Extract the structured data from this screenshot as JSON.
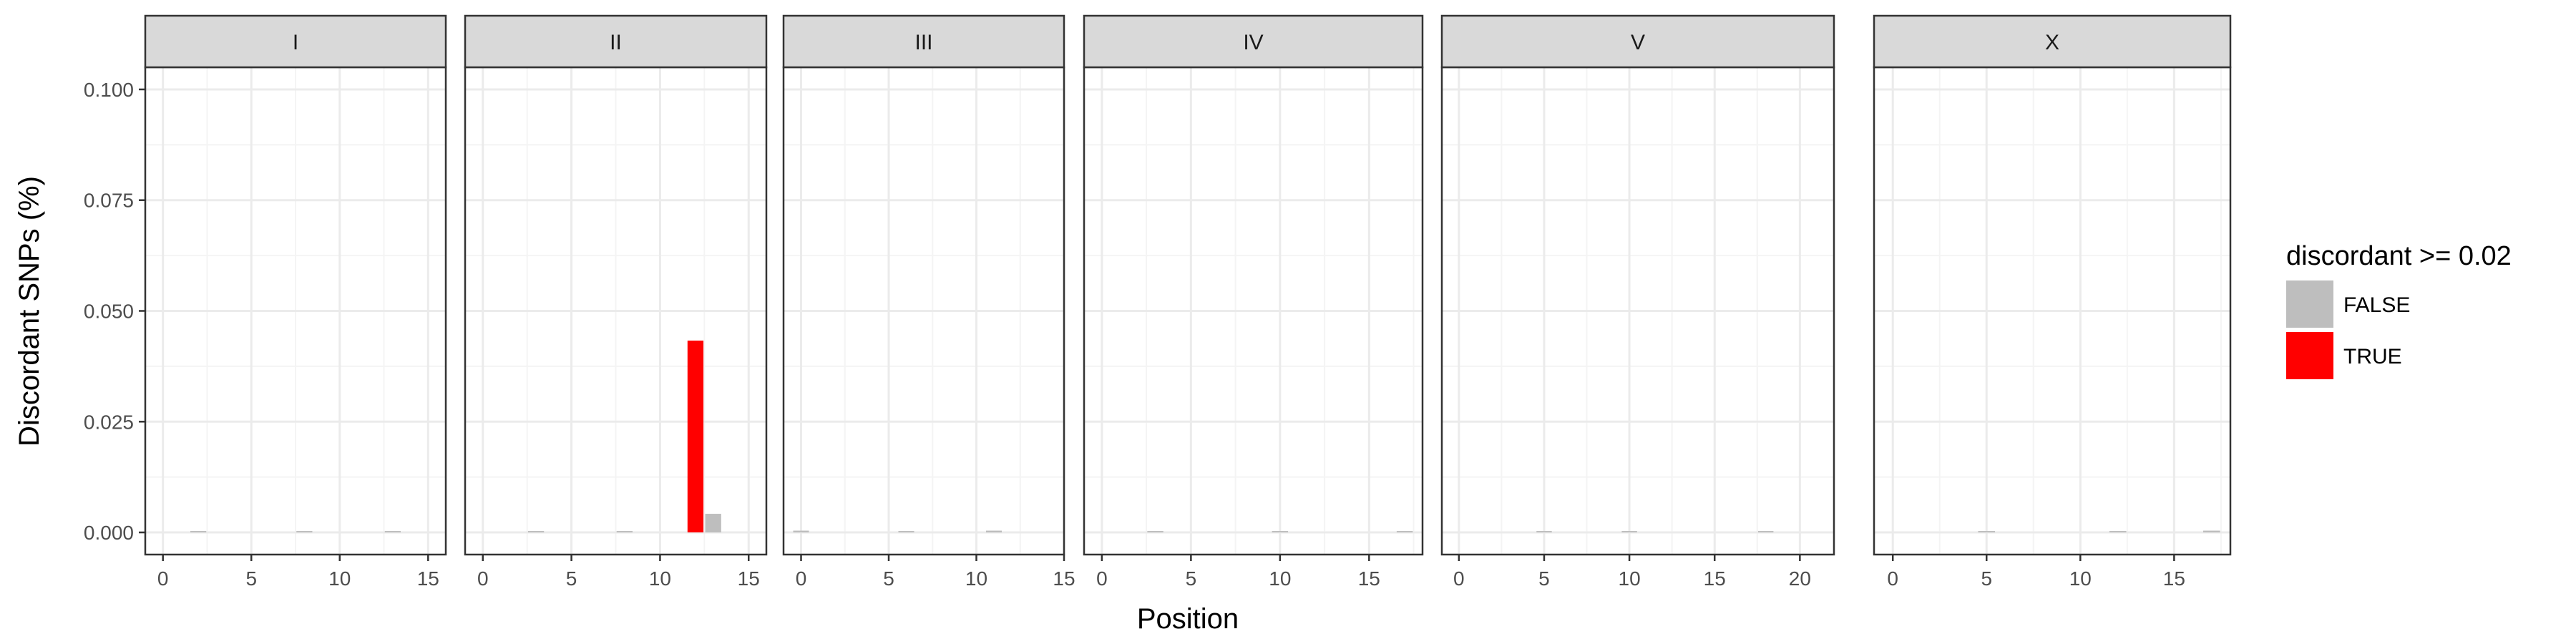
{
  "chart_data": {
    "type": "bar",
    "facet_variable": "chromosome",
    "panels": [
      {
        "label": "I",
        "xlim": [
          -1,
          16
        ],
        "xticks": [
          0,
          5,
          10,
          15
        ],
        "bars": [
          {
            "x": 2,
            "y": 0.0001,
            "group": "FALSE"
          },
          {
            "x": 8,
            "y": 0.0001,
            "group": "FALSE"
          },
          {
            "x": 13,
            "y": 0.0001,
            "group": "FALSE"
          }
        ]
      },
      {
        "label": "II",
        "xlim": [
          -1,
          16
        ],
        "xticks": [
          0,
          5,
          10,
          15
        ],
        "bars": [
          {
            "x": 3,
            "y": 0.0003,
            "group": "FALSE"
          },
          {
            "x": 8,
            "y": 0.0002,
            "group": "FALSE"
          },
          {
            "x": 12,
            "y": 0.0433,
            "group": "TRUE"
          },
          {
            "x": 13,
            "y": 0.0042,
            "group": "FALSE"
          }
        ]
      },
      {
        "label": "III",
        "xlim": [
          -1,
          15
        ],
        "xticks": [
          0,
          5,
          10,
          15
        ],
        "bars": [
          {
            "x": 0,
            "y": 0.0004,
            "group": "FALSE"
          },
          {
            "x": 6,
            "y": 0.0002,
            "group": "FALSE"
          },
          {
            "x": 11,
            "y": 0.0004,
            "group": "FALSE"
          }
        ]
      },
      {
        "label": "IV",
        "xlim": [
          -1,
          18
        ],
        "xticks": [
          0,
          5,
          10,
          15
        ],
        "bars": [
          {
            "x": 3,
            "y": 0.0003,
            "group": "FALSE"
          },
          {
            "x": 10,
            "y": 0.0002,
            "group": "FALSE"
          },
          {
            "x": 17,
            "y": 0.0003,
            "group": "FALSE"
          }
        ]
      },
      {
        "label": "V",
        "xlim": [
          -1,
          22
        ],
        "xticks": [
          0,
          5,
          10,
          15,
          20
        ],
        "bars": [
          {
            "x": 5,
            "y": 0.0002,
            "group": "FALSE"
          },
          {
            "x": 10,
            "y": 0.0003,
            "group": "FALSE"
          },
          {
            "x": 18,
            "y": 0.0002,
            "group": "FALSE"
          }
        ]
      },
      {
        "label": "X",
        "xlim": [
          -1,
          18
        ],
        "xticks": [
          0,
          5,
          10,
          15
        ],
        "bars": [
          {
            "x": 5,
            "y": 0.0002,
            "group": "FALSE"
          },
          {
            "x": 12,
            "y": 0.0002,
            "group": "FALSE"
          },
          {
            "x": 17,
            "y": 0.0004,
            "group": "FALSE"
          }
        ]
      }
    ],
    "ylim": [
      -0.005,
      0.105
    ],
    "yticks": [
      "0.000",
      "0.025",
      "0.050",
      "0.075",
      "0.100"
    ],
    "xlabel": "Position",
    "ylabel": "Discordant SNPs (%)",
    "legend": {
      "title": "discordant >= 0.02",
      "placement": "right",
      "entries": [
        {
          "label": "FALSE",
          "color": "#bebebe"
        },
        {
          "label": "TRUE",
          "color": "#ff0000"
        }
      ]
    },
    "grid": true
  },
  "colors": {
    "strip_background": "#d9d9d9",
    "panel_border": "#333333",
    "grid_major": "#ebebeb",
    "grid_minor": "#f4f4f4"
  }
}
